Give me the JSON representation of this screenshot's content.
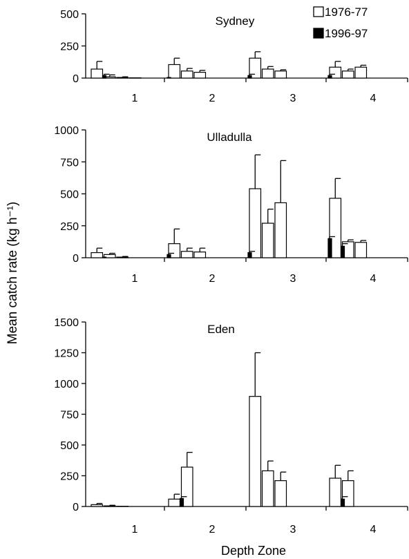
{
  "figure": {
    "ylabel": "Mean catch rate (kg h⁻¹)",
    "xlabel": "Depth Zone",
    "legend": [
      {
        "name": "1976-77",
        "color": "#ffffff"
      },
      {
        "name": "1996-97",
        "color": "#000000"
      }
    ]
  },
  "chart_data": [
    {
      "type": "bar",
      "title": "Sydney",
      "categories": [
        "1",
        "2",
        "3",
        "4"
      ],
      "ylim": [
        0,
        500
      ],
      "yticks": [
        0,
        250,
        500
      ],
      "series": [
        {
          "name": "1976-77",
          "values": [
            [
              70,
              10,
              5,
              2
            ],
            [
              105,
              55,
              45,
              0
            ],
            [
              155,
              70,
              55,
              0
            ],
            [
              85,
              55,
              85,
              0
            ]
          ],
          "errors": [
            [
              60,
              15,
              5,
              0
            ],
            [
              50,
              20,
              15,
              0
            ],
            [
              50,
              20,
              10,
              0
            ],
            [
              45,
              15,
              15,
              0
            ]
          ]
        },
        {
          "name": "1996-97",
          "values": [
            [
              0,
              20,
              0,
              0
            ],
            [
              5,
              0,
              0,
              0
            ],
            [
              20,
              0,
              0,
              0
            ],
            [
              20,
              0,
              0,
              0
            ]
          ],
          "errors": [
            [
              0,
              10,
              0,
              0
            ],
            [
              0,
              0,
              0,
              0
            ],
            [
              10,
              0,
              0,
              0
            ],
            [
              10,
              0,
              0,
              0
            ]
          ]
        }
      ]
    },
    {
      "type": "bar",
      "title": "Ulladulla",
      "categories": [
        "1",
        "2",
        "3",
        "4"
      ],
      "ylim": [
        0,
        1000
      ],
      "yticks": [
        0,
        250,
        500,
        750,
        1000
      ],
      "series": [
        {
          "name": "1976-77",
          "values": [
            [
              40,
              25,
              5,
              0
            ],
            [
              110,
              50,
              45,
              0
            ],
            [
              540,
              270,
              430,
              0
            ],
            [
              465,
              125,
              120,
              0
            ]
          ],
          "errors": [
            [
              35,
              10,
              5,
              0
            ],
            [
              115,
              25,
              30,
              0
            ],
            [
              265,
              110,
              330,
              0
            ],
            [
              155,
              15,
              15,
              0
            ]
          ]
        },
        {
          "name": "1996-97",
          "values": [
            [
              0,
              5,
              0,
              0
            ],
            [
              25,
              0,
              0,
              0
            ],
            [
              40,
              0,
              0,
              0
            ],
            [
              150,
              90,
              0,
              0
            ]
          ],
          "errors": [
            [
              0,
              0,
              0,
              0
            ],
            [
              10,
              0,
              0,
              0
            ],
            [
              10,
              0,
              0,
              0
            ],
            [
              15,
              20,
              0,
              0
            ]
          ]
        }
      ]
    },
    {
      "type": "bar",
      "title": "Eden",
      "categories": [
        "1",
        "2",
        "3",
        "4"
      ],
      "ylim": [
        0,
        1500
      ],
      "yticks": [
        0,
        250,
        500,
        750,
        1000,
        1250,
        1500
      ],
      "series": [
        {
          "name": "1976-77",
          "values": [
            [
              15,
              5,
              2,
              0
            ],
            [
              60,
              320,
              0,
              0
            ],
            [
              895,
              290,
              210,
              0
            ],
            [
              230,
              210,
              0,
              0
            ]
          ],
          "errors": [
            [
              10,
              5,
              0,
              0
            ],
            [
              40,
              120,
              0,
              0
            ],
            [
              355,
              80,
              70,
              0
            ],
            [
              105,
              80,
              0,
              0
            ]
          ]
        },
        {
          "name": "1996-97",
          "values": [
            [
              0,
              0,
              0,
              0
            ],
            [
              0,
              65,
              0,
              0
            ],
            [
              0,
              0,
              0,
              0
            ],
            [
              0,
              60,
              0,
              0
            ]
          ],
          "errors": [
            [
              0,
              0,
              0,
              0
            ],
            [
              0,
              15,
              0,
              0
            ],
            [
              0,
              0,
              0,
              0
            ],
            [
              0,
              20,
              0,
              0
            ]
          ]
        }
      ]
    }
  ]
}
